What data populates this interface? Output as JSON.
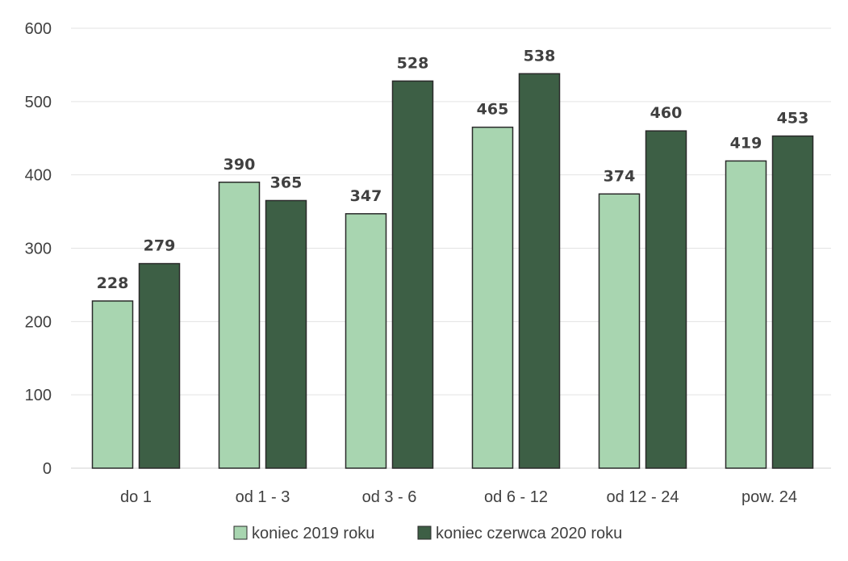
{
  "chart_data": {
    "type": "bar",
    "categories": [
      "do 1",
      "od 1 - 3",
      "od 3 - 6",
      "od 6 - 12",
      "od 12 - 24",
      "pow. 24"
    ],
    "series": [
      {
        "name": "koniec 2019 roku",
        "values": [
          228,
          390,
          347,
          465,
          374,
          419
        ],
        "color": "#a8d5b0"
      },
      {
        "name": "koniec czerwca 2020 roku",
        "values": [
          279,
          365,
          528,
          538,
          460,
          453
        ],
        "color": "#3d5f45"
      }
    ],
    "title": "",
    "xlabel": "",
    "ylabel": "",
    "ylim": [
      0,
      600
    ],
    "yticks": [
      0,
      100,
      200,
      300,
      400,
      500,
      600
    ],
    "grid": true,
    "legend_position": "bottom-center",
    "data_labels": true
  }
}
